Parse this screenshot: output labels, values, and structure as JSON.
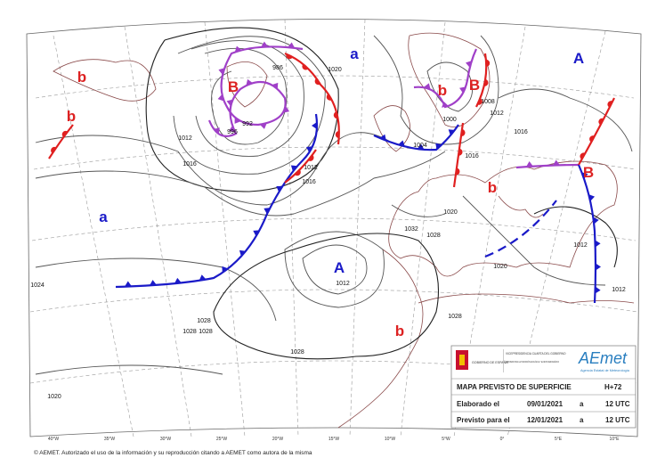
{
  "map": {
    "pressure_centers": [
      "b",
      "b",
      "B",
      "a",
      "A",
      "b",
      "B",
      "b",
      "B",
      "a",
      "A",
      "b"
    ],
    "isobar_labels": [
      "1012",
      "1016",
      "1020",
      "1012",
      "1016",
      "1024",
      "1028",
      "1028",
      "1028",
      "1028",
      "1020",
      "1032",
      "1028",
      "1028",
      "1012",
      "1020",
      "1020",
      "1012",
      "1012",
      "1012",
      "1016",
      "1008",
      "992",
      "996",
      "986",
      "1004",
      "1000",
      "1016"
    ],
    "longitude_labels": [
      "40°W",
      "35°W",
      "30°W",
      "25°W",
      "20°W",
      "15°W",
      "10°W",
      "5°W",
      "0°",
      "5°E",
      "10°E"
    ]
  },
  "logos": {
    "government": "GOBIERNO DE ESPAÑA",
    "ministry_1": "VICEPRESIDENCIA CUARTA DEL GOBIERNO",
    "ministry_2": "MINISTERIO PARA LA TRANSICIÓN ECOLÓGICA Y EL RETO DEMOGRÁFICO",
    "agency": "AEmet",
    "agency_name": "Agencia Estatal de Meteorología"
  },
  "info_box": {
    "title": "MAPA PREVISTO DE SUPERFICIE",
    "lead": "H+72",
    "issued_label": "Elaborado el",
    "issued_date": "09/01/2021",
    "issued_sep": "a",
    "issued_time": "12 UTC",
    "valid_label": "Previsto para el",
    "valid_date": "12/01/2021",
    "valid_sep": "a",
    "valid_time": "12 UTC"
  },
  "footer": "© AEMET. Autorizado el uso de la información y su reproducción citando a AEMET como autora de la misma"
}
